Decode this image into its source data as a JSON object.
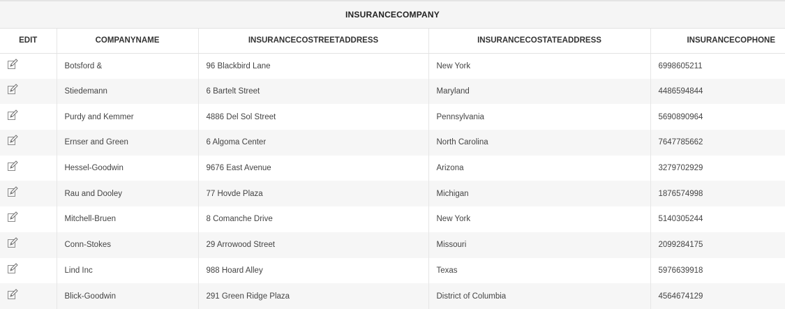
{
  "table": {
    "title": "INSURANCECOMPANY",
    "columns": [
      "EDIT",
      "COMPANYNAME",
      "INSURANCECOSTREETADDRESS",
      "INSURANCECOSTATEADDRESS",
      "INSURANCECOPHONE"
    ],
    "rows": [
      {
        "company": "Botsford &",
        "street": "96 Blackbird Lane",
        "state": "New York",
        "phone": "6998605211"
      },
      {
        "company": "Stiedemann",
        "street": "6 Bartelt Street",
        "state": "Maryland",
        "phone": "4486594844"
      },
      {
        "company": "Purdy and Kemmer",
        "street": "4886 Del Sol Street",
        "state": "Pennsylvania",
        "phone": "5690890964"
      },
      {
        "company": "Ernser and Green",
        "street": "6 Algoma Center",
        "state": "North Carolina",
        "phone": "7647785662"
      },
      {
        "company": "Hessel-Goodwin",
        "street": "9676 East Avenue",
        "state": "Arizona",
        "phone": "3279702929"
      },
      {
        "company": "Rau and Dooley",
        "street": "77 Hovde Plaza",
        "state": "Michigan",
        "phone": "1876574998"
      },
      {
        "company": "Mitchell-Bruen",
        "street": "8 Comanche Drive",
        "state": "New York",
        "phone": "5140305244"
      },
      {
        "company": "Conn-Stokes",
        "street": "29 Arrowood Street",
        "state": "Missouri",
        "phone": "2099284175"
      },
      {
        "company": "Lind Inc",
        "street": "988 Hoard Alley",
        "state": "Texas",
        "phone": "5976639918"
      },
      {
        "company": "Blick-Goodwin",
        "street": "291 Green Ridge Plaza",
        "state": "District of Columbia",
        "phone": "4564674129"
      }
    ]
  },
  "icons": {
    "edit": "edit-pencil-icon"
  }
}
